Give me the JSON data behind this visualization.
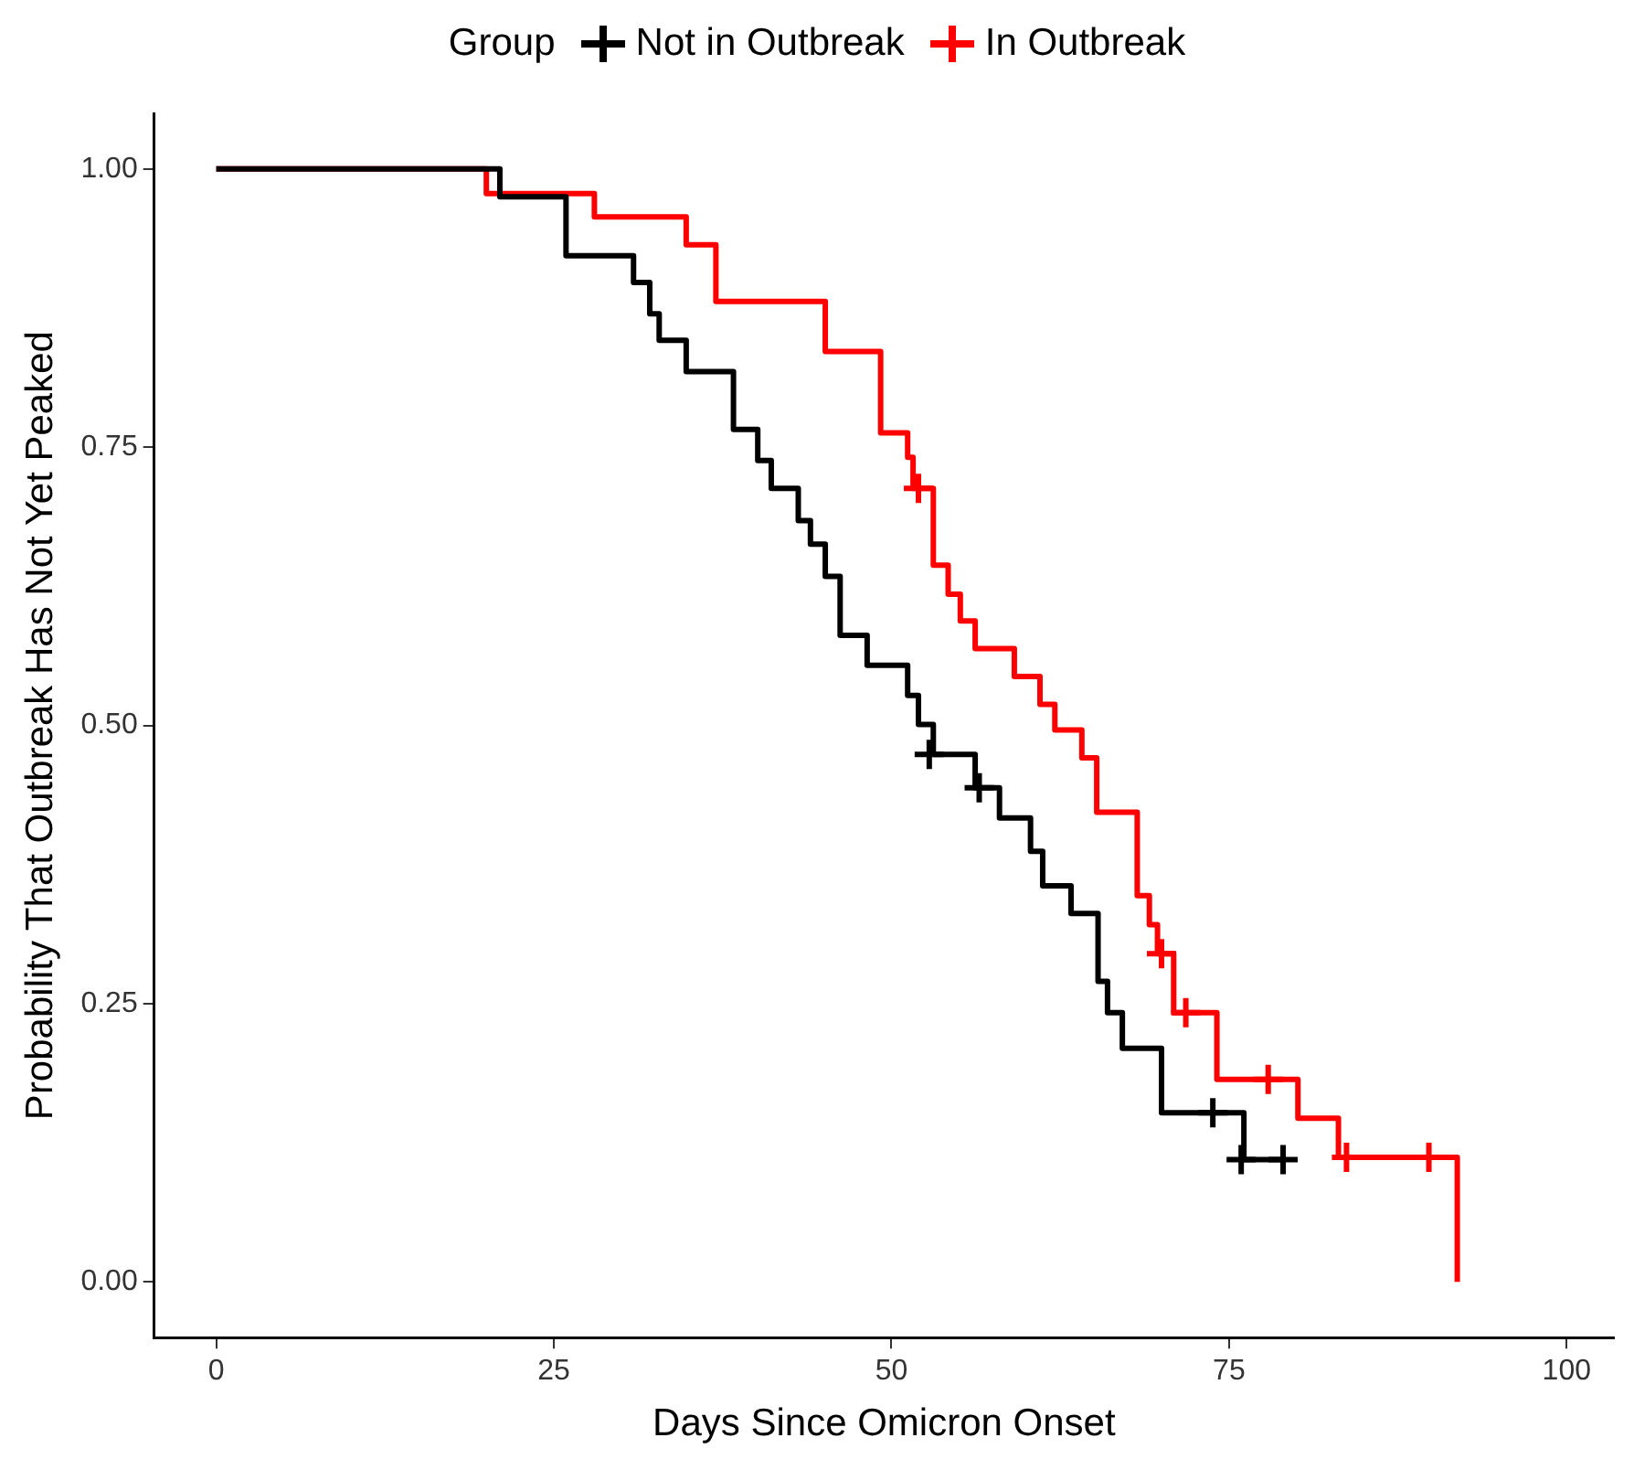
{
  "chart_data": {
    "type": "step",
    "xlabel": "Days Since Omicron Onset",
    "ylabel": "Probability That Outbreak Has Not Yet Peaked",
    "legend_title": "Group",
    "legend": "top",
    "xlim": [
      -4.6,
      103.5
    ],
    "xticks": [
      0,
      25,
      50,
      75,
      100
    ],
    "ylim": [
      -0.05,
      1.05
    ],
    "yticks": [
      {
        "value": 0,
        "label": "0.00"
      },
      {
        "value": 0.25,
        "label": "0.25"
      },
      {
        "value": 0.5,
        "label": "0.50"
      },
      {
        "value": 0.75,
        "label": "0.75"
      },
      {
        "value": 1,
        "label": "1.00"
      }
    ],
    "grid": false,
    "line_style": "solid",
    "series": [
      {
        "name": "Not in Outbreak",
        "color": "#000000",
        "x": [
          0,
          21,
          25.9,
          30.9,
          32.1,
          32.8,
          34.8,
          38.3,
          40.1,
          41.1,
          43.1,
          44.0,
          45.1,
          46.2,
          48.2,
          51.2,
          52.0,
          53.1,
          56.2,
          58.0,
          60.3,
          61.2,
          63.3,
          65.3,
          66.0,
          67.1,
          70.0,
          76.1,
          79.0
        ],
        "values": [
          1,
          0.975,
          0.922,
          0.898,
          0.87,
          0.846,
          0.818,
          0.766,
          0.738,
          0.713,
          0.684,
          0.663,
          0.634,
          0.581,
          0.554,
          0.527,
          0.501,
          0.474,
          0.444,
          0.417,
          0.387,
          0.356,
          0.331,
          0.27,
          0.242,
          0.21,
          0.152,
          0.11,
          0.11
        ]
      },
      {
        "name": "In Outbreak",
        "color": "#ff0000",
        "x": [
          0,
          20,
          28,
          34.8,
          37,
          45.1,
          49.2,
          51.2,
          51.6,
          53.1,
          54.2,
          55.1,
          56.2,
          59.1,
          61,
          62.1,
          64.1,
          65.2,
          68.2,
          69.1,
          69.7,
          70.9,
          74.1,
          80.1,
          83.1,
          91.9
        ],
        "values": [
          1,
          0.978,
          0.957,
          0.932,
          0.881,
          0.836,
          0.763,
          0.741,
          0.713,
          0.644,
          0.618,
          0.594,
          0.569,
          0.544,
          0.519,
          0.496,
          0.471,
          0.422,
          0.347,
          0.321,
          0.295,
          0.242,
          0.182,
          0.147,
          0.112,
          0
        ]
      },
      {
        "color": "#000000",
        "type": "scatter",
        "marker": "cross",
        "x": [
          52.8,
          56.5,
          73.8,
          75.9,
          79.0
        ],
        "values": [
          0.474,
          0.444,
          0.152,
          0.11,
          0.11
        ]
      },
      {
        "color": "#ff0000",
        "type": "scatter",
        "marker": "cross",
        "x": [
          52.0,
          70.0,
          71.8,
          77.9,
          83.7,
          89.8
        ],
        "values": [
          0.713,
          0.295,
          0.242,
          0.182,
          0.112,
          0.112
        ]
      }
    ]
  }
}
